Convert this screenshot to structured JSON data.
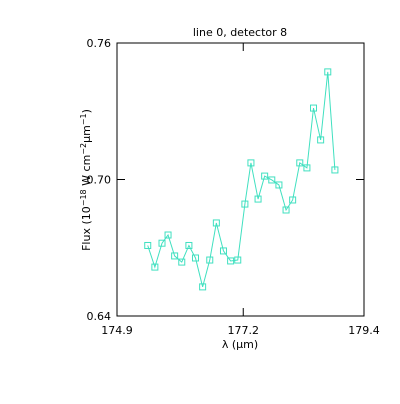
{
  "chart_data": {
    "type": "line",
    "title": "line 0, detector 8",
    "xlabel": "λ (μm)",
    "ylabel": [
      {
        "text": "Flux (10"
      },
      {
        "text": "−18",
        "sup": true
      },
      {
        "text": " W cm"
      },
      {
        "text": "−2",
        "sup": true
      },
      {
        "text": "μm"
      },
      {
        "text": "−1",
        "sup": true
      },
      {
        "text": ")"
      }
    ],
    "xlim": [
      174.9,
      179.4
    ],
    "xticks": [
      174.9,
      177.2,
      179.4
    ],
    "ylim": [
      0.64,
      0.76
    ],
    "yticks": [
      0.64,
      {
        "value": 0.7,
        "label": "0.70"
      },
      0.76
    ],
    "series": [
      {
        "color": "#40e0c0",
        "marker": "square",
        "x": [
          175.46,
          175.59,
          175.72,
          175.83,
          175.95,
          176.08,
          176.21,
          176.33,
          176.46,
          176.59,
          176.71,
          176.84,
          176.97,
          177.1,
          177.23,
          177.34,
          177.47,
          177.59,
          177.72,
          177.85,
          177.98,
          178.1,
          178.23,
          178.36,
          178.48,
          178.61,
          178.74,
          178.87
        ],
        "values": [
          0.671,
          0.6615,
          0.672,
          0.6756,
          0.6664,
          0.6637,
          0.671,
          0.6655,
          0.6528,
          0.6646,
          0.6809,
          0.6686,
          0.6642,
          0.6646,
          0.6892,
          0.7073,
          0.6914,
          0.7015,
          0.6998,
          0.6976,
          0.6866,
          0.691,
          0.7073,
          0.7051,
          0.7314,
          0.7174,
          0.7473,
          0.7042
        ]
      }
    ]
  }
}
